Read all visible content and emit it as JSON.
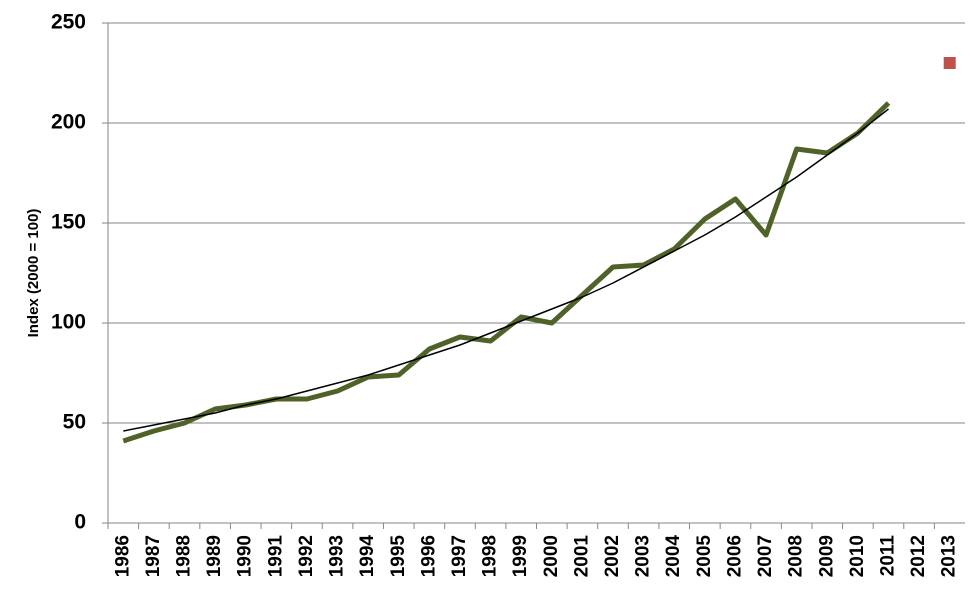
{
  "chart_data": {
    "type": "line",
    "y_label": "Index (2000 = 100)",
    "categories": [
      "1986",
      "1987",
      "1988",
      "1989",
      "1990",
      "1991",
      "1992",
      "1993",
      "1994",
      "1995",
      "1996",
      "1997",
      "1998",
      "1999",
      "2000",
      "2001",
      "2002",
      "2003",
      "2004",
      "2005",
      "2006",
      "2007",
      "2008",
      "2009",
      "2010",
      "2011",
      "2012",
      "2013"
    ],
    "series": [
      {
        "color": "#4f6228",
        "width": 5,
        "values": [
          41,
          46,
          50,
          57,
          59,
          62,
          62,
          66,
          73,
          74,
          87,
          93,
          91,
          103,
          100,
          114,
          128,
          129,
          137,
          152,
          162,
          144,
          187,
          185,
          195,
          210,
          null,
          null
        ]
      },
      {
        "color": "#000000",
        "width": 1.5,
        "values": [
          46,
          49,
          52,
          55,
          59,
          62,
          66,
          70,
          74,
          79,
          84,
          89,
          95,
          101,
          107,
          113,
          120,
          128,
          136,
          144,
          153,
          163,
          173,
          184,
          195,
          207,
          null,
          null
        ]
      },
      {
        "color": "#c0504d",
        "marker": "square",
        "values": [
          null,
          null,
          null,
          null,
          null,
          null,
          null,
          null,
          null,
          null,
          null,
          null,
          null,
          null,
          null,
          null,
          null,
          null,
          null,
          null,
          null,
          null,
          null,
          null,
          null,
          null,
          null,
          230
        ]
      }
    ],
    "ylim": [
      0,
      250
    ],
    "yticks": [
      0,
      50,
      100,
      150,
      200,
      250
    ],
    "grid": true
  }
}
